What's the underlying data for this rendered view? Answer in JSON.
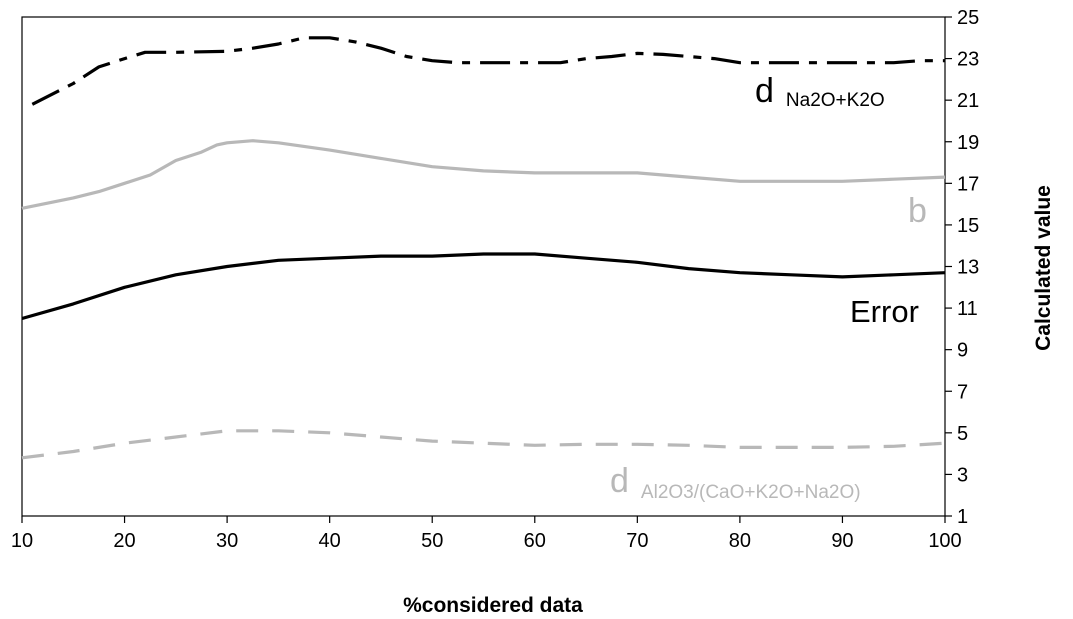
{
  "chart_data": {
    "type": "line",
    "title": "",
    "xlabel": "%considered data",
    "ylabel": "Calculated value",
    "xlim": [
      10,
      100
    ],
    "ylim": [
      1,
      25
    ],
    "x_ticks": [
      10,
      20,
      30,
      40,
      50,
      60,
      70,
      80,
      90,
      100
    ],
    "y_ticks": [
      1,
      3,
      5,
      7,
      9,
      11,
      13,
      15,
      17,
      19,
      21,
      23,
      25
    ],
    "y_axis_side": "right",
    "grid": false,
    "legend": "none",
    "series": [
      {
        "name": "d Na2O+K2O",
        "label_main": "d",
        "label_sub": "Na2O+K2O",
        "color": "#000000",
        "dash": "dash-dot",
        "x": [
          11,
          15,
          17.5,
          20,
          22,
          25,
          30,
          32.5,
          35,
          37.5,
          40,
          42.5,
          45,
          47.5,
          50,
          52.5,
          55,
          57.5,
          60,
          62.5,
          65,
          67.5,
          70,
          72.5,
          75,
          77.5,
          80,
          85,
          90,
          95,
          97.5,
          100
        ],
        "y": [
          20.8,
          21.8,
          22.6,
          23.0,
          23.3,
          23.3,
          23.35,
          23.5,
          23.7,
          24.0,
          24.0,
          23.8,
          23.5,
          23.1,
          22.9,
          22.8,
          22.8,
          22.8,
          22.8,
          22.8,
          23.0,
          23.1,
          23.25,
          23.2,
          23.1,
          23.0,
          22.8,
          22.8,
          22.8,
          22.8,
          22.9,
          22.9
        ]
      },
      {
        "name": "b",
        "label_main": "b",
        "color": "#b8b8b8",
        "dash": "solid",
        "x": [
          10,
          15,
          17.5,
          20,
          22.5,
          25,
          27.5,
          29,
          30,
          32.5,
          35,
          40,
          45,
          50,
          55,
          60,
          65,
          70,
          75,
          80,
          85,
          90,
          95,
          100
        ],
        "y": [
          15.8,
          16.3,
          16.6,
          17.0,
          17.4,
          18.1,
          18.5,
          18.85,
          18.95,
          19.05,
          18.95,
          18.6,
          18.2,
          17.8,
          17.6,
          17.5,
          17.5,
          17.5,
          17.3,
          17.1,
          17.1,
          17.1,
          17.2,
          17.3
        ]
      },
      {
        "name": "Error",
        "label_main": "Error",
        "color": "#000000",
        "dash": "solid",
        "x": [
          10,
          15,
          20,
          25,
          30,
          35,
          40,
          45,
          50,
          55,
          60,
          65,
          70,
          75,
          80,
          85,
          90,
          95,
          100
        ],
        "y": [
          10.5,
          11.2,
          12.0,
          12.6,
          13.0,
          13.3,
          13.4,
          13.5,
          13.5,
          13.6,
          13.6,
          13.4,
          13.2,
          12.9,
          12.7,
          12.6,
          12.5,
          12.6,
          12.7
        ]
      },
      {
        "name": "d Al2O3/(CaO+K2O+Na2O)",
        "label_main": "d",
        "label_sub": "Al2O3/(CaO+K2O+Na2O)",
        "color": "#b8b8b8",
        "dash": "dashed",
        "x": [
          10,
          15,
          20,
          25,
          30,
          35,
          40,
          45,
          50,
          55,
          60,
          65,
          70,
          75,
          80,
          85,
          90,
          95,
          100
        ],
        "y": [
          3.8,
          4.1,
          4.5,
          4.8,
          5.1,
          5.1,
          5.0,
          4.8,
          4.6,
          4.5,
          4.4,
          4.45,
          4.45,
          4.4,
          4.3,
          4.3,
          4.3,
          4.35,
          4.5
        ]
      }
    ]
  }
}
